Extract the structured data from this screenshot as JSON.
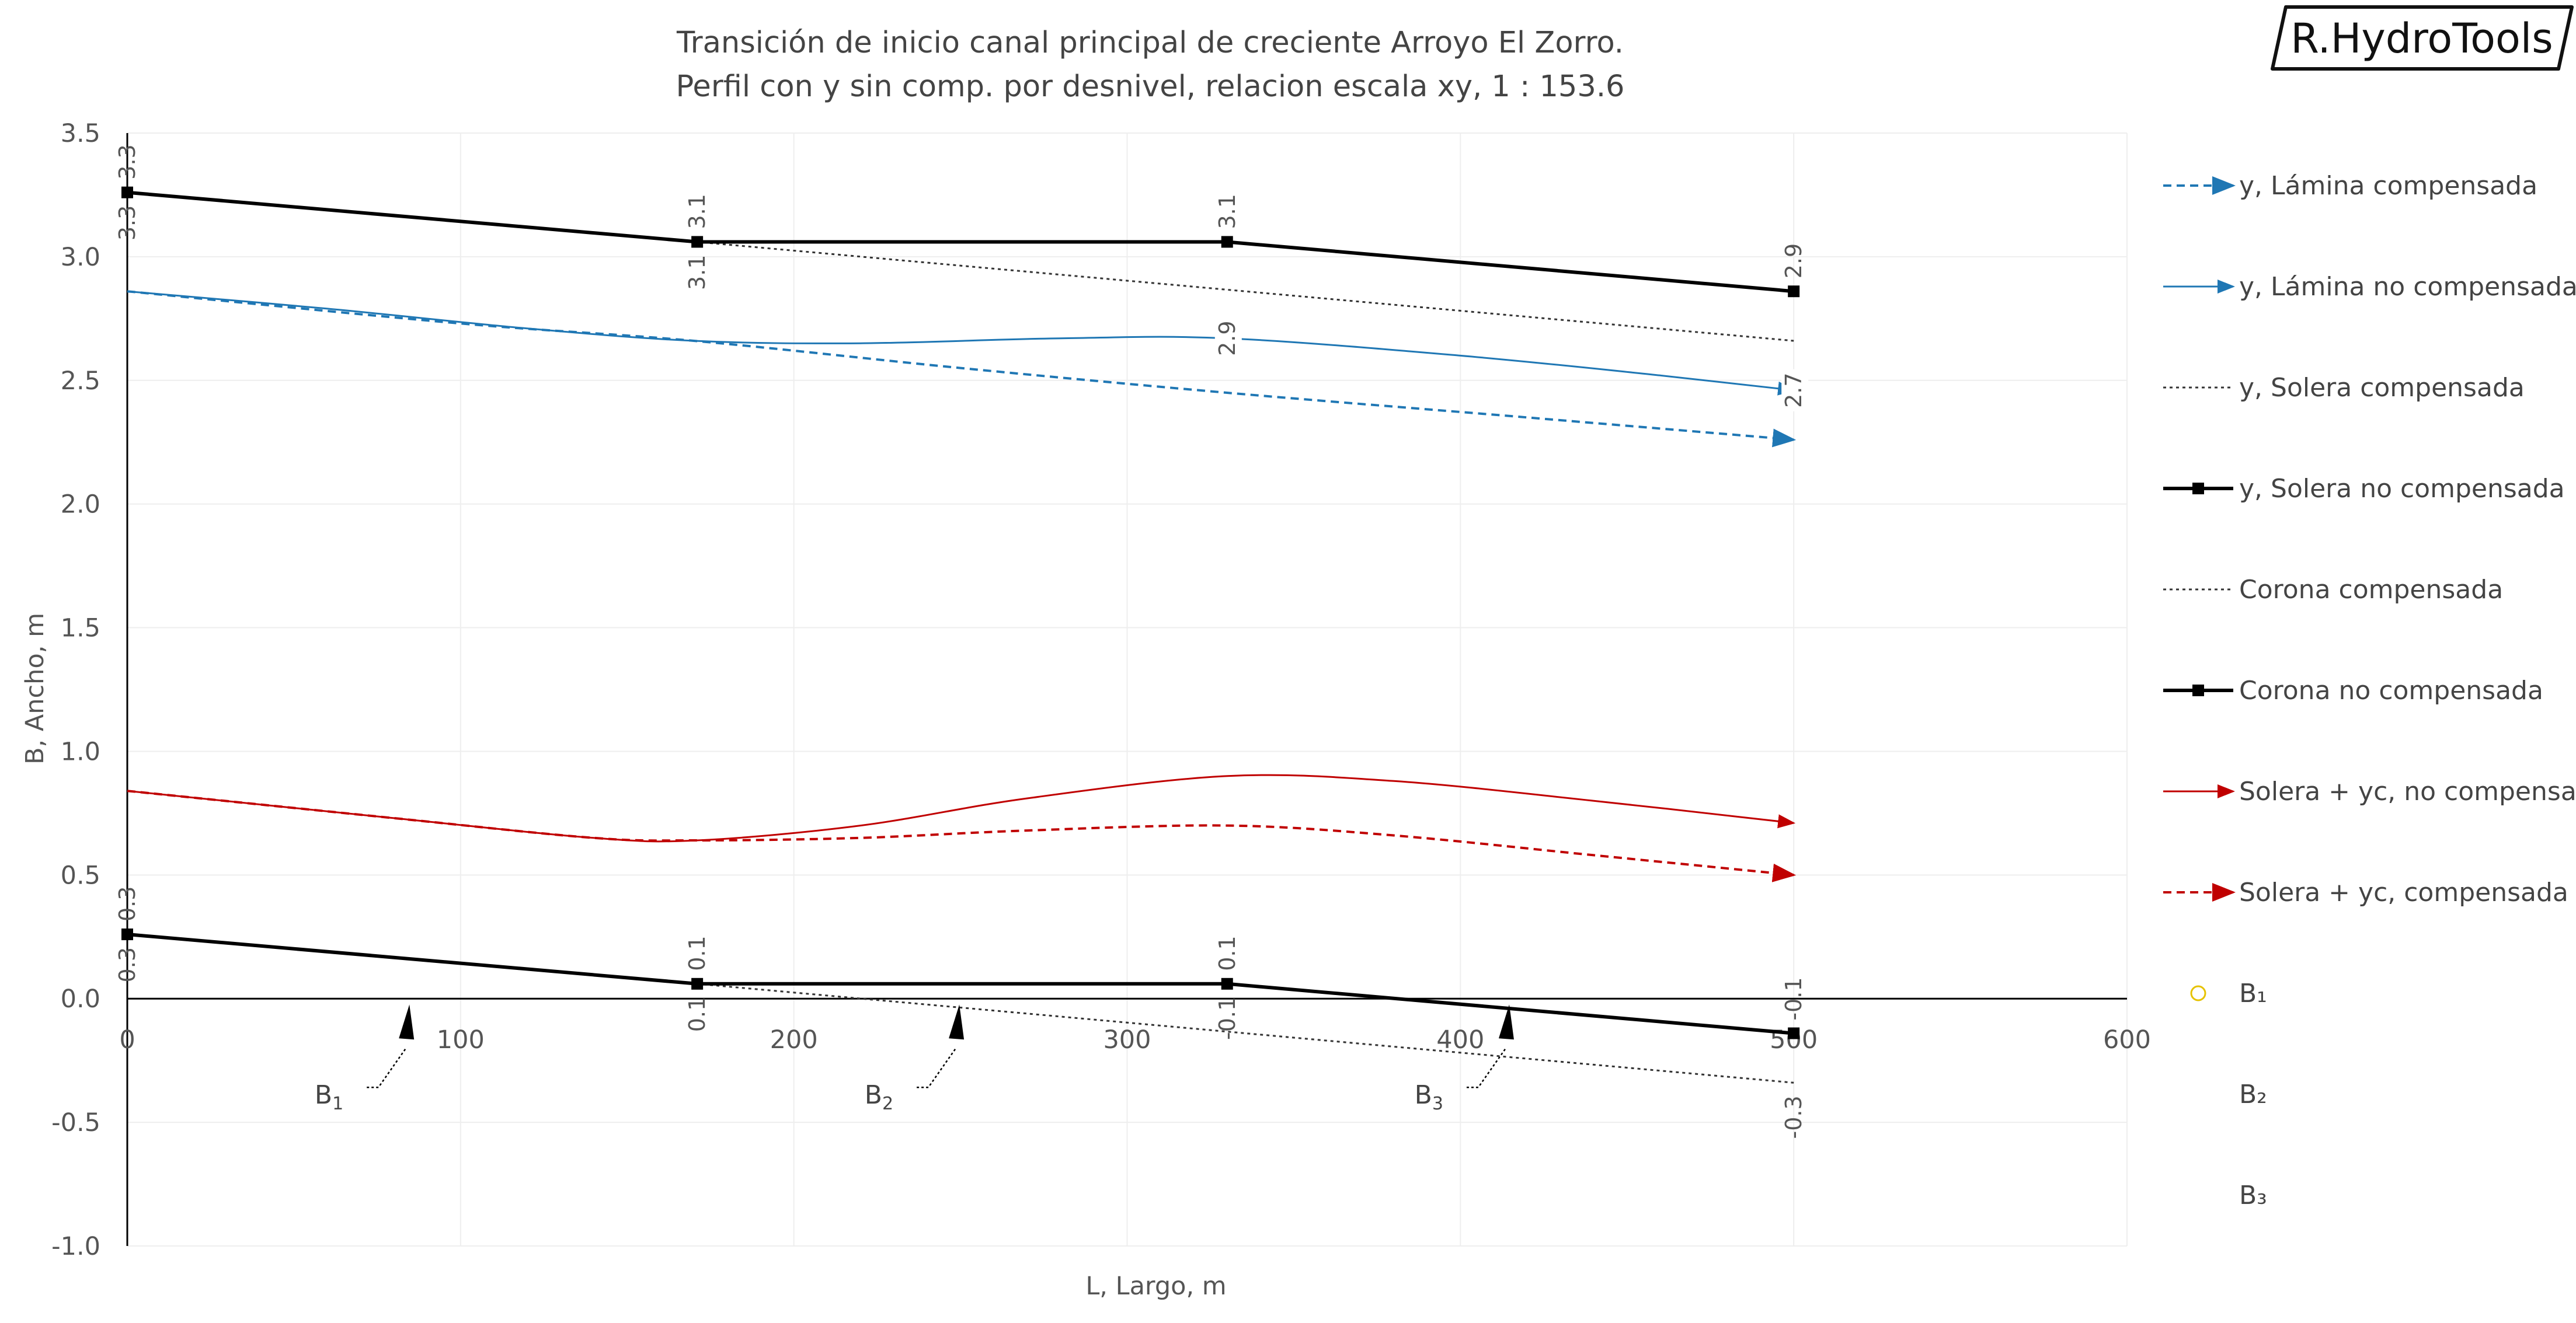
{
  "logo": {
    "text": "R.HydroTools"
  },
  "chart_data": {
    "type": "line",
    "title": "Transición de inicio canal principal de creciente Arroyo El Zorro.",
    "subtitle": "Perfil con y sin comp. por desnivel, relacion escala xy,  1 : 153.6",
    "xlabel": "L, Largo, m",
    "ylabel": "B, Ancho, m",
    "xlim": [
      0,
      600
    ],
    "ylim": [
      -1.0,
      3.5
    ],
    "xticks": [
      "0",
      "100",
      "200",
      "300",
      "400",
      "500",
      "600"
    ],
    "yticks": [
      "3.5",
      "3.0",
      "2.5",
      "2.0",
      "1.5",
      "1.0",
      "0.5",
      "0.0",
      "-0.5",
      "-1.0"
    ],
    "legend_position": "right",
    "series": [
      {
        "name": "y, Lámina compensada",
        "color": "#1f77b4",
        "style": "dashed-arrow",
        "x": [
          0,
          100,
          170,
          250,
          330,
          420,
          500
        ],
        "y": [
          2.86,
          2.73,
          2.66,
          2.55,
          2.45,
          2.35,
          2.26
        ]
      },
      {
        "name": "y, Lámina no compensada",
        "color": "#1f77b4",
        "style": "solid-arrow",
        "x": [
          0,
          60,
          120,
          170,
          220,
          280,
          330,
          400,
          460,
          500
        ],
        "y": [
          2.86,
          2.79,
          2.71,
          2.66,
          2.65,
          2.67,
          2.67,
          2.6,
          2.52,
          2.46
        ]
      },
      {
        "name": "y, Solera compensada",
        "color": "#333333",
        "style": "dotted",
        "x": [
          171,
          500
        ],
        "y": [
          3.06,
          2.66
        ]
      },
      {
        "name": "y, Solera no compensada",
        "color": "#000000",
        "style": "solid-square",
        "x": [
          0,
          171,
          330,
          500
        ],
        "y": [
          3.26,
          3.06,
          3.06,
          2.86
        ]
      },
      {
        "name": "Corona compensada",
        "color": "#333333",
        "style": "dotted",
        "x": [
          171,
          500
        ],
        "y": [
          0.06,
          -0.34
        ]
      },
      {
        "name": "Corona no compensada",
        "color": "#000000",
        "style": "solid-square",
        "x": [
          0,
          171,
          330,
          500
        ],
        "y": [
          0.26,
          0.06,
          0.06,
          -0.14
        ]
      },
      {
        "name": "Solera + yc, no compensada",
        "color": "#c00000",
        "style": "solid-arrow",
        "x": [
          0,
          80,
          140,
          171,
          220,
          270,
          330,
          380,
          440,
          500
        ],
        "y": [
          0.84,
          0.73,
          0.65,
          0.64,
          0.7,
          0.81,
          0.9,
          0.88,
          0.8,
          0.71
        ]
      },
      {
        "name": "Solera + yc, compensada",
        "color": "#c00000",
        "style": "dashed-arrow",
        "x": [
          0,
          80,
          140,
          171,
          220,
          270,
          330,
          380,
          440,
          500
        ],
        "y": [
          0.84,
          0.73,
          0.65,
          0.64,
          0.65,
          0.68,
          0.7,
          0.66,
          0.58,
          0.5
        ]
      },
      {
        "name": "B₁",
        "color": "#e6c200",
        "style": "marker-circle",
        "x": [],
        "y": []
      },
      {
        "name": "B₂",
        "color": "#e6c200",
        "style": "none",
        "x": [],
        "y": []
      },
      {
        "name": "B₃",
        "color": "#e6c200",
        "style": "none",
        "x": [],
        "y": []
      }
    ],
    "data_labels": [
      {
        "x": 0,
        "y": 3.26,
        "text": "3.3",
        "pos": "above"
      },
      {
        "x": 0,
        "y": 3.26,
        "text": "3.3",
        "pos": "below"
      },
      {
        "x": 171,
        "y": 3.06,
        "text": "3.1",
        "pos": "above"
      },
      {
        "x": 171,
        "y": 3.06,
        "text": "3.1",
        "pos": "below"
      },
      {
        "x": 330,
        "y": 3.06,
        "text": "3.1",
        "pos": "above"
      },
      {
        "x": 330,
        "y": 2.67,
        "text": "2.9",
        "pos": "on"
      },
      {
        "x": 500,
        "y": 2.86,
        "text": "2.9",
        "pos": "above"
      },
      {
        "x": 500,
        "y": 2.46,
        "text": "2.7",
        "pos": "on"
      },
      {
        "x": 0,
        "y": 0.26,
        "text": "0.3",
        "pos": "above"
      },
      {
        "x": 0,
        "y": 0.26,
        "text": "0.3",
        "pos": "below"
      },
      {
        "x": 171,
        "y": 0.06,
        "text": "0.1",
        "pos": "above"
      },
      {
        "x": 171,
        "y": 0.06,
        "text": "0.1",
        "pos": "below"
      },
      {
        "x": 330,
        "y": 0.06,
        "text": "0.1",
        "pos": "above"
      },
      {
        "x": 330,
        "y": 0.06,
        "text": "-0.1",
        "pos": "below"
      },
      {
        "x": 500,
        "y": -0.14,
        "text": "-0.1",
        "pos": "above"
      },
      {
        "x": 500,
        "y": -0.34,
        "text": "-0.3",
        "pos": "below"
      }
    ],
    "annotations": [
      {
        "text": "B",
        "sub": "1",
        "x": 85,
        "y": 0.0
      },
      {
        "text": "B",
        "sub": "2",
        "x": 250,
        "y": 0.0
      },
      {
        "text": "B",
        "sub": "3",
        "x": 415,
        "y": 0.0
      }
    ]
  }
}
